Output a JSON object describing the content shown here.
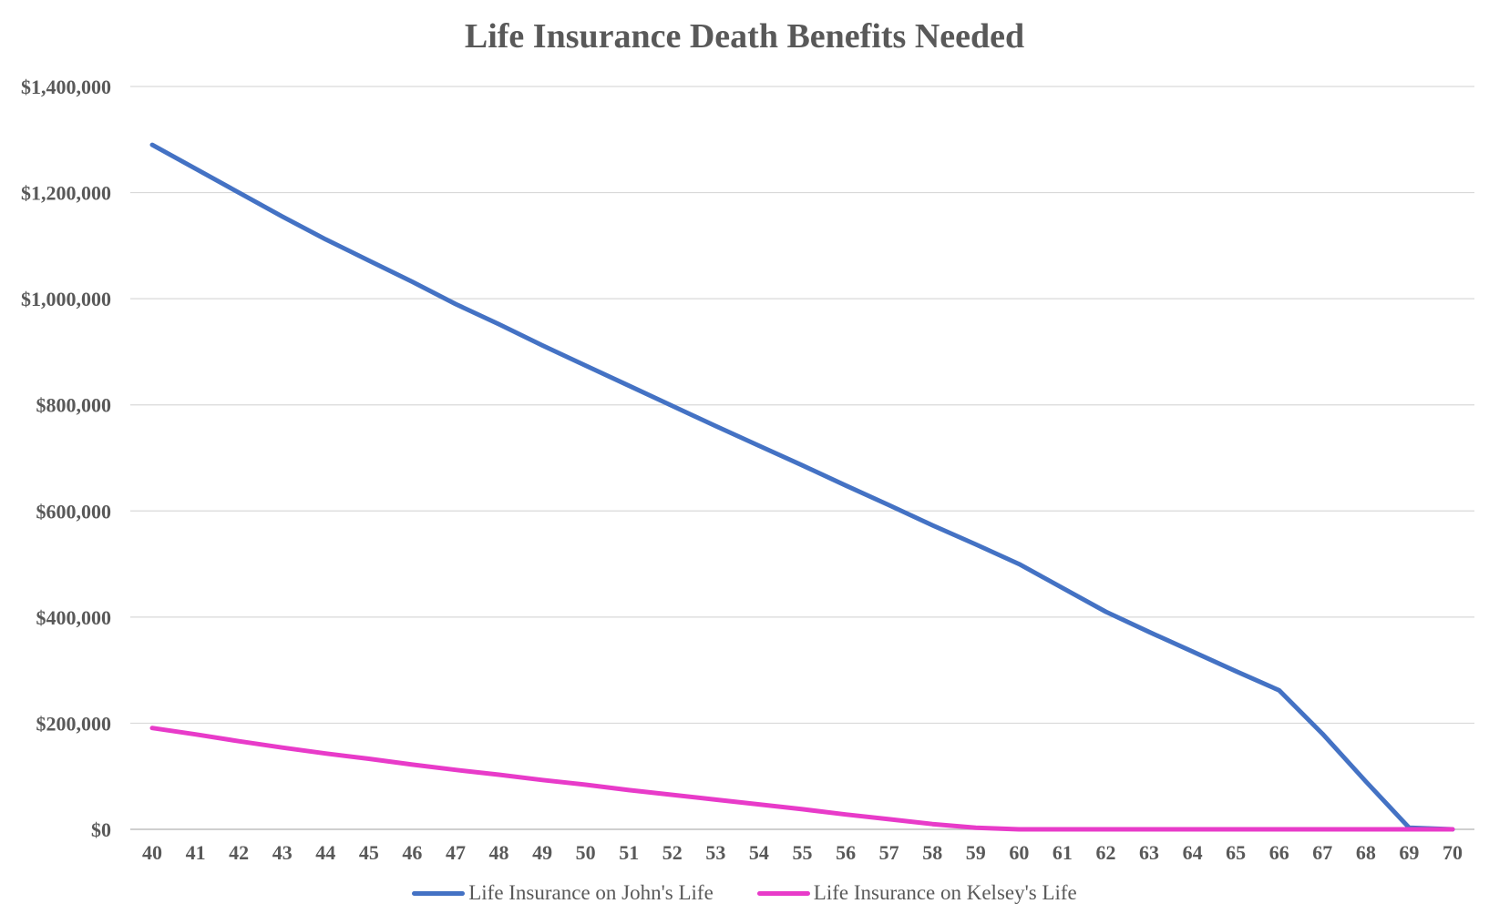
{
  "chart_data": {
    "type": "line",
    "title": "Life Insurance Death Benefits Needed",
    "xlabel": "",
    "ylabel": "",
    "x": [
      40,
      41,
      42,
      43,
      44,
      45,
      46,
      47,
      48,
      49,
      50,
      51,
      52,
      53,
      54,
      55,
      56,
      57,
      58,
      59,
      60,
      61,
      62,
      63,
      64,
      65,
      66,
      67,
      68,
      69,
      70
    ],
    "y_ticks": [
      "$0",
      "$200,000",
      "$400,000",
      "$600,000",
      "$800,000",
      "$1,000,000",
      "$1,200,000",
      "$1,400,000"
    ],
    "y_tick_values": [
      0,
      200000,
      400000,
      600000,
      800000,
      1000000,
      1200000,
      1400000
    ],
    "ylim": [
      0,
      1400000
    ],
    "grid": "horizontal",
    "legend_position": "bottom",
    "series": [
      {
        "name": "Life Insurance on John's Life",
        "color": "#4472C4",
        "values": [
          1290000,
          1245000,
          1200000,
          1155000,
          1112000,
          1072000,
          1032000,
          990000,
          952000,
          912000,
          874000,
          836000,
          798000,
          760000,
          723000,
          686000,
          648000,
          611000,
          573000,
          537000,
          500000,
          455000,
          410000,
          372000,
          335000,
          298000,
          262000,
          180000,
          90000,
          3000,
          0
        ]
      },
      {
        "name": "Life Insurance on Kelsey's Life",
        "color": "#E83BC9",
        "values": [
          191000,
          179000,
          166000,
          154000,
          143000,
          133000,
          122000,
          112000,
          103000,
          93000,
          84000,
          74000,
          65000,
          56000,
          47000,
          38000,
          28000,
          19000,
          10000,
          3000,
          0,
          0,
          0,
          0,
          0,
          0,
          0,
          0,
          0,
          0,
          0
        ]
      }
    ]
  }
}
